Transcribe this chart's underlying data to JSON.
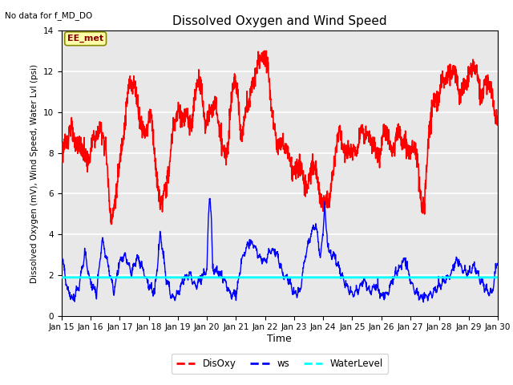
{
  "title": "Dissolved Oxygen and Wind Speed",
  "top_left_text": "No data for f_MD_DO",
  "annotation_text": "EE_met",
  "xlabel": "Time",
  "ylabel": "Dissolved Oxygen (mV), Wind Speed, Water Lvl (psi)",
  "xlim_days": [
    15,
    30
  ],
  "ylim": [
    0,
    14
  ],
  "yticks": [
    0,
    2,
    4,
    6,
    8,
    10,
    12,
    14
  ],
  "xtick_labels": [
    "Jan 15",
    "Jan 16",
    "Jan 17",
    "Jan 18",
    "Jan 19",
    "Jan 20",
    "Jan 21",
    "Jan 22",
    "Jan 23",
    "Jan 24",
    "Jan 25",
    "Jan 26",
    "Jan 27",
    "Jan 28",
    "Jan 29",
    "Jan 30"
  ],
  "water_level": 1.88,
  "plot_bg_color": "#e8e8e8",
  "disoxy_color": "red",
  "ws_color": "blue",
  "wl_color": "cyan",
  "disoxy_linewidth": 1.2,
  "ws_linewidth": 1.0,
  "wl_linewidth": 2.0,
  "legend_labels": [
    "DisOxy",
    "ws",
    "WaterLevel"
  ],
  "eebox_facecolor": "#ffffaa",
  "eebox_edgecolor": "#888800",
  "eetext_color": "#880000"
}
